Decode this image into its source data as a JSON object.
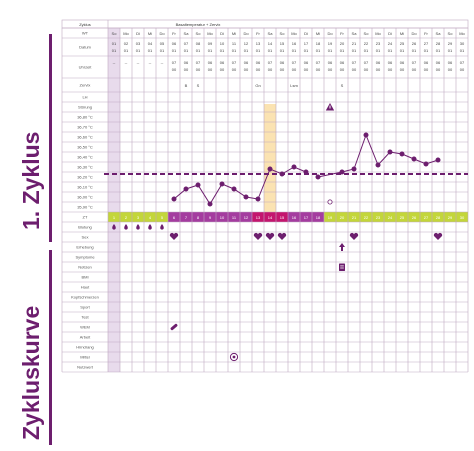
{
  "side_titles": {
    "top": "1. Zyklus",
    "bottom": "Zykluskurve"
  },
  "header": {
    "label": "Zyklus",
    "title": "Basaltemperatur + Zervix"
  },
  "row_labels": [
    "WT",
    "Datum",
    "Uhrzeit",
    "Zervix",
    "LH",
    "Störung",
    "36,80 °C",
    "36,70 °C",
    "36,60 °C",
    "36,50 °C",
    "36,40 °C",
    "36,30 °C",
    "36,20 °C",
    "36,10 °C",
    "36,00 °C",
    "35,90 °C",
    "ZT",
    "Blutung",
    "Sex",
    "Erhebung",
    "Symptome",
    "Notizen",
    "BMI",
    "Haut",
    "Kopfschmerzen",
    "Sport",
    "Test",
    "WEM",
    "Arbeit",
    "Hirndrang",
    "Mittel",
    "Nutzwert"
  ],
  "weekdays": [
    "So",
    "Mo",
    "Di",
    "Mi",
    "Do",
    "Fr",
    "Sa",
    "So",
    "Mo",
    "Di",
    "Mi",
    "Do",
    "Fr",
    "Sa",
    "So",
    "Mo",
    "Di",
    "Mi",
    "Do",
    "Fr",
    "Sa",
    "So",
    "Mo",
    "Di",
    "Mi",
    "Do",
    "Fr",
    "Sa",
    "So",
    "Mo"
  ],
  "dates": [
    [
      "01",
      "01"
    ],
    [
      "02",
      "01"
    ],
    [
      "03",
      "01"
    ],
    [
      "04",
      "01"
    ],
    [
      "05",
      "01"
    ],
    [
      "06",
      "01"
    ],
    [
      "07",
      "01"
    ],
    [
      "08",
      "01"
    ],
    [
      "09",
      "01"
    ],
    [
      "10",
      "01"
    ],
    [
      "11",
      "01"
    ],
    [
      "12",
      "01"
    ],
    [
      "13",
      "01"
    ],
    [
      "14",
      "01"
    ],
    [
      "15",
      "01"
    ],
    [
      "16",
      "01"
    ],
    [
      "17",
      "01"
    ],
    [
      "18",
      "01"
    ],
    [
      "19",
      "01"
    ],
    [
      "20",
      "01"
    ],
    [
      "21",
      "01"
    ],
    [
      "22",
      "01"
    ],
    [
      "23",
      "01"
    ],
    [
      "24",
      "01"
    ],
    [
      "25",
      "01"
    ],
    [
      "26",
      "01"
    ],
    [
      "27",
      "01"
    ],
    [
      "28",
      "01"
    ],
    [
      "29",
      "01"
    ],
    [
      "30",
      "01"
    ]
  ],
  "times": [
    [
      "--",
      ""
    ],
    [
      "--",
      ""
    ],
    [
      "--",
      ""
    ],
    [
      "--",
      ""
    ],
    [
      "--",
      ""
    ],
    [
      "07",
      "00"
    ],
    [
      "06",
      "00"
    ],
    [
      "07",
      "00"
    ],
    [
      "06",
      "00"
    ],
    [
      "06",
      "00"
    ],
    [
      "07",
      "00"
    ],
    [
      "06",
      "00"
    ],
    [
      "06",
      "00"
    ],
    [
      "07",
      "00"
    ],
    [
      "06",
      "00"
    ],
    [
      "07",
      "00"
    ],
    [
      "06",
      "00"
    ],
    [
      "07",
      "00"
    ],
    [
      "06",
      "00"
    ],
    [
      "06",
      "00"
    ],
    [
      "07",
      "00"
    ],
    [
      "07",
      "00"
    ],
    [
      "06",
      "00"
    ],
    [
      "06",
      "00"
    ],
    [
      "06",
      "00"
    ],
    [
      "07",
      "00"
    ],
    [
      "06",
      "00"
    ],
    [
      "06",
      "00"
    ],
    [
      "06",
      "00"
    ],
    [
      "07",
      "00"
    ]
  ],
  "zervix": [
    {
      "day": 7,
      "text": "B"
    },
    {
      "day": 8,
      "text": "S"
    },
    {
      "day": 13,
      "text": "Gn"
    },
    {
      "day": 16,
      "text": "Lsm"
    },
    {
      "day": 20,
      "text": "S"
    }
  ],
  "cycle_days": [
    "1",
    "2",
    "3",
    "4",
    "5",
    "6",
    "7",
    "8",
    "9",
    "10",
    "11",
    "12",
    "13",
    "14",
    "15",
    "16",
    "17",
    "18",
    "19",
    "20",
    "21",
    "22",
    "23",
    "24",
    "25",
    "26",
    "27",
    "28",
    "29",
    "30"
  ],
  "colors": {
    "purple": "#6d1e6e",
    "mid_purple": "#a43c9f",
    "light_purple": "#d9c3df",
    "lime": "#c3d63a",
    "magenta": "#c4156e",
    "orange_band": "#fbe3b2",
    "grid": "#bfa9c2"
  },
  "icons": {
    "bleeding": "droplet-icon",
    "sex": "heart-icon",
    "disturbance": "warning-icon",
    "elevation": "arrow-up-icon",
    "notes": "clipboard-icon",
    "wem": "pill-icon",
    "mittel": "target-icon"
  },
  "chart_data": {
    "type": "line",
    "x": [
      6,
      7,
      8,
      9,
      10,
      11,
      12,
      13,
      14,
      15,
      16,
      17,
      18,
      19,
      20,
      21,
      22,
      23,
      24,
      25,
      26,
      27,
      28
    ],
    "y": [
      35.98,
      36.08,
      36.12,
      35.93,
      36.13,
      36.08,
      36.0,
      35.98,
      36.28,
      36.23,
      36.3,
      36.25,
      36.2,
      35.95,
      36.25,
      36.28,
      36.62,
      36.32,
      36.45,
      36.43,
      36.38,
      36.33,
      36.37
    ],
    "coverline": 36.23,
    "ylim": [
      35.85,
      36.85
    ],
    "highlight_day": 14,
    "disturbed_days": [
      18,
      19
    ],
    "phases": {
      "menstruation": [
        1,
        2,
        3,
        4,
        5
      ],
      "fertile": [
        6,
        7,
        8,
        9,
        10,
        11,
        12
      ],
      "peak": [
        13,
        14,
        15
      ],
      "post_peak": [
        16,
        17,
        18
      ],
      "infertile": [
        19,
        20,
        21,
        22,
        23,
        24,
        25,
        26,
        27,
        28,
        29,
        30
      ]
    },
    "bleeding_days": [
      1,
      2,
      3,
      4,
      5
    ],
    "sex_days": [
      6,
      13,
      14,
      15,
      21,
      28
    ],
    "elevation_days": [
      20
    ],
    "notes_days": [
      20
    ],
    "wem_days": [
      6
    ],
    "mittel_days": [
      11
    ],
    "disturbance_days": [
      19
    ]
  }
}
